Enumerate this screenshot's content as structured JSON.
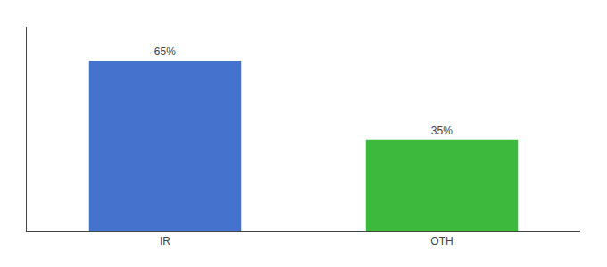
{
  "chart_data": {
    "type": "bar",
    "categories": [
      "IR",
      "OTH"
    ],
    "values": [
      65,
      35
    ],
    "value_labels": [
      "65%",
      "35%"
    ],
    "colors": [
      "#4472cc",
      "#3dba3d"
    ],
    "ylim": [
      0,
      78
    ],
    "data_labels": true,
    "tick_labels": "x",
    "grid": false
  }
}
